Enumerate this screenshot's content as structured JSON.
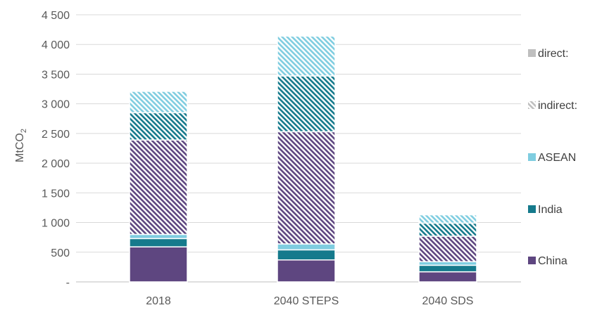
{
  "chart_data": {
    "type": "bar",
    "stacked": true,
    "categories": [
      "2018",
      "2040 STEPS",
      "2040 SDS"
    ],
    "ylabel": "MtCO",
    "ylabel_subscript": "2",
    "ylim": [
      0,
      4500
    ],
    "yticks": [
      0,
      500,
      1000,
      1500,
      2000,
      2500,
      3000,
      3500,
      4000,
      4500
    ],
    "ytick_labels": [
      "-",
      "500",
      "1 000",
      "1 500",
      "2 000",
      "2 500",
      "3 000",
      "3 500",
      "4 000",
      "4 500"
    ],
    "grid": true,
    "legend_placement": "right",
    "legend": [
      {
        "label": "direct:",
        "swatch": "solid",
        "color": "#bfbfbf"
      },
      {
        "label": "indirect:",
        "swatch": "hatch",
        "color": "#bfbfbf"
      },
      {
        "label": "ASEAN",
        "swatch": "solid",
        "color": "#7fcde0"
      },
      {
        "label": "India",
        "swatch": "solid",
        "color": "#157a8c"
      },
      {
        "label": "China",
        "swatch": "solid",
        "color": "#5e4680"
      }
    ],
    "series": [
      {
        "region": "China",
        "kind": "direct",
        "color": "#5e4680",
        "values": [
          590,
          370,
          170
        ]
      },
      {
        "region": "India",
        "kind": "direct",
        "color": "#157a8c",
        "values": [
          140,
          170,
          110
        ]
      },
      {
        "region": "ASEAN",
        "kind": "direct",
        "color": "#7fcde0",
        "values": [
          70,
          100,
          60
        ]
      },
      {
        "region": "China",
        "kind": "indirect",
        "color": "#5e4680",
        "values": [
          1590,
          1890,
          430
        ]
      },
      {
        "region": "India",
        "kind": "indirect",
        "color": "#157a8c",
        "values": [
          460,
          940,
          220
        ]
      },
      {
        "region": "ASEAN",
        "kind": "indirect",
        "color": "#7fcde0",
        "values": [
          360,
          670,
          140
        ]
      }
    ]
  }
}
